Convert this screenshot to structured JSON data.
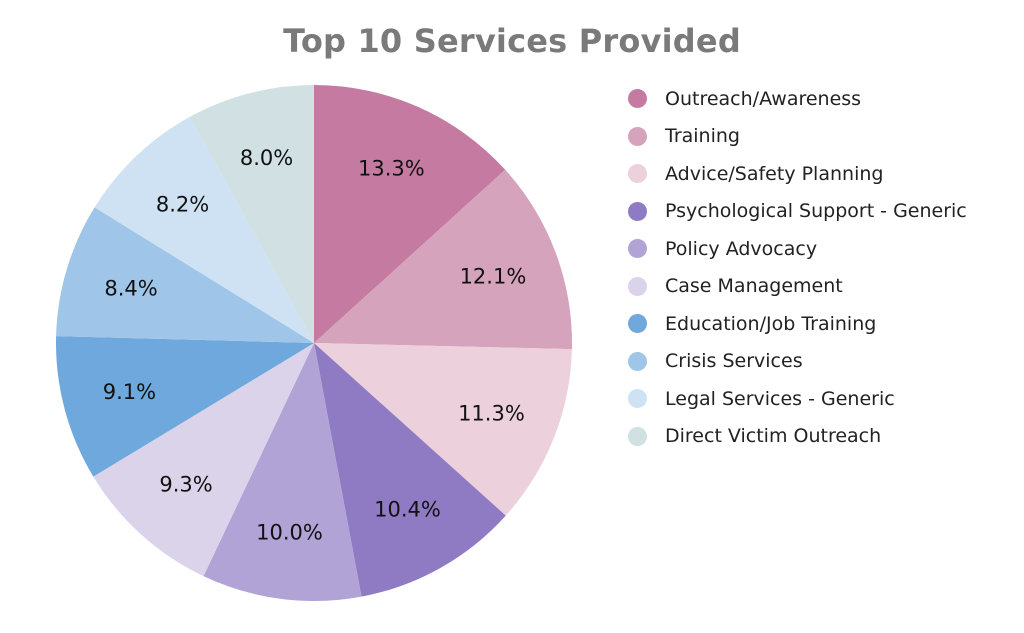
{
  "chart_data": {
    "type": "pie",
    "title": "Top 10 Services Provided",
    "legend_position": "right",
    "slices": [
      {
        "label": "Outreach/Awareness",
        "value": 13.3,
        "display": "13.3%",
        "color": "#c47aa1"
      },
      {
        "label": "Training",
        "value": 12.1,
        "display": "12.1%",
        "color": "#d5a3bb"
      },
      {
        "label": "Advice/Safety Planning",
        "value": 11.3,
        "display": "11.3%",
        "color": "#ecd0dc"
      },
      {
        "label": "Psychological Support - Generic",
        "value": 10.4,
        "display": "10.4%",
        "color": "#8f7bc3"
      },
      {
        "label": "Policy Advocacy",
        "value": 10.0,
        "display": "10.0%",
        "color": "#b1a3d6"
      },
      {
        "label": "Case Management",
        "value": 9.3,
        "display": "9.3%",
        "color": "#dbd3ea"
      },
      {
        "label": "Education/Job Training",
        "value": 9.1,
        "display": "9.1%",
        "color": "#6fa8dc"
      },
      {
        "label": "Crisis Services",
        "value": 8.4,
        "display": "8.4%",
        "color": "#9fc5e8"
      },
      {
        "label": "Legal Services - Generic",
        "value": 8.2,
        "display": "8.2%",
        "color": "#cfe2f3"
      },
      {
        "label": "Direct Victim Outreach",
        "value": 8.0,
        "display": "8.0%",
        "color": "#d0e0e3"
      }
    ]
  }
}
